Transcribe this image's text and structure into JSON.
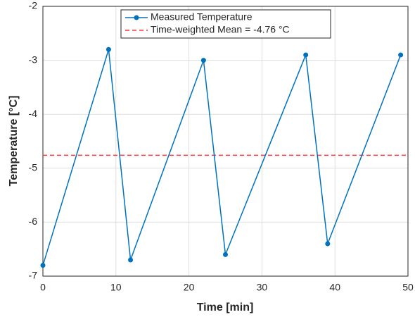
{
  "chart_data": {
    "type": "line",
    "x_label": "Time [min]",
    "y_label": "Temperature [°C]",
    "x": [
      0,
      9,
      12,
      22,
      25,
      36,
      39,
      49
    ],
    "series": [
      {
        "name": "Measured Temperature",
        "color": "#0072bd",
        "values": [
          -6.8,
          -2.8,
          -6.7,
          -3.0,
          -6.6,
          -2.9,
          -6.4,
          -2.9
        ]
      }
    ],
    "reference_line": {
      "name": "Time-weighted Mean = -4.76 °C",
      "value": -4.76,
      "color": "#ff3333"
    },
    "xlim": [
      0,
      50
    ],
    "xticks": [
      0,
      10,
      20,
      30,
      40,
      50
    ],
    "ylim": [
      -7,
      -2
    ],
    "yticks": [
      -7,
      -6,
      -5,
      -4,
      -3,
      -2
    ],
    "grid": true
  }
}
